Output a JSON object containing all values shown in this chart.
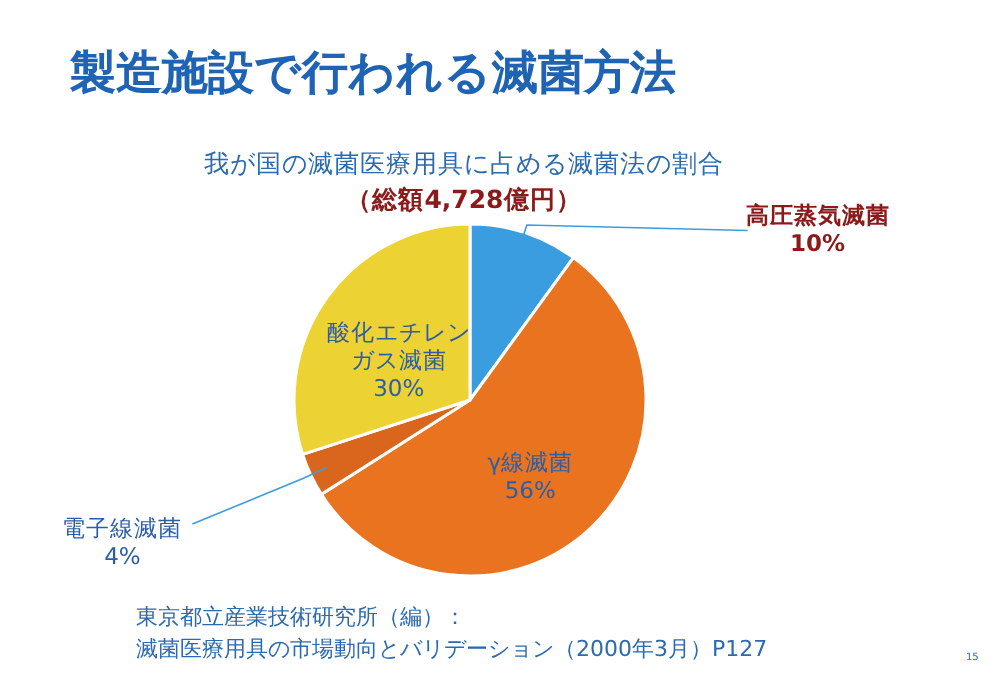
{
  "chart_data": {
    "type": "pie",
    "title": "製造施設で行われる滅菌方法",
    "subtitle": "我が国の滅菌医療用具に占める滅菌法の割合",
    "categories": [
      "高圧蒸気滅菌",
      "γ線滅菌",
      "電子線滅菌",
      "酸化エチレンガス滅菌"
    ],
    "values": [
      10,
      56,
      4,
      30
    ],
    "value_labels": [
      "10%",
      "56%",
      "4%",
      "30%"
    ],
    "colors": [
      "#3a9de0",
      "#ea7320",
      "#d9661c",
      "#ecd232"
    ],
    "annotations": [
      "（総額4,728億円）",
      "東京都立産業技術研究所（編）：",
      "滅菌医療用具の市場動向とバリデーション（2000年3月）P127",
      "15"
    ]
  }
}
